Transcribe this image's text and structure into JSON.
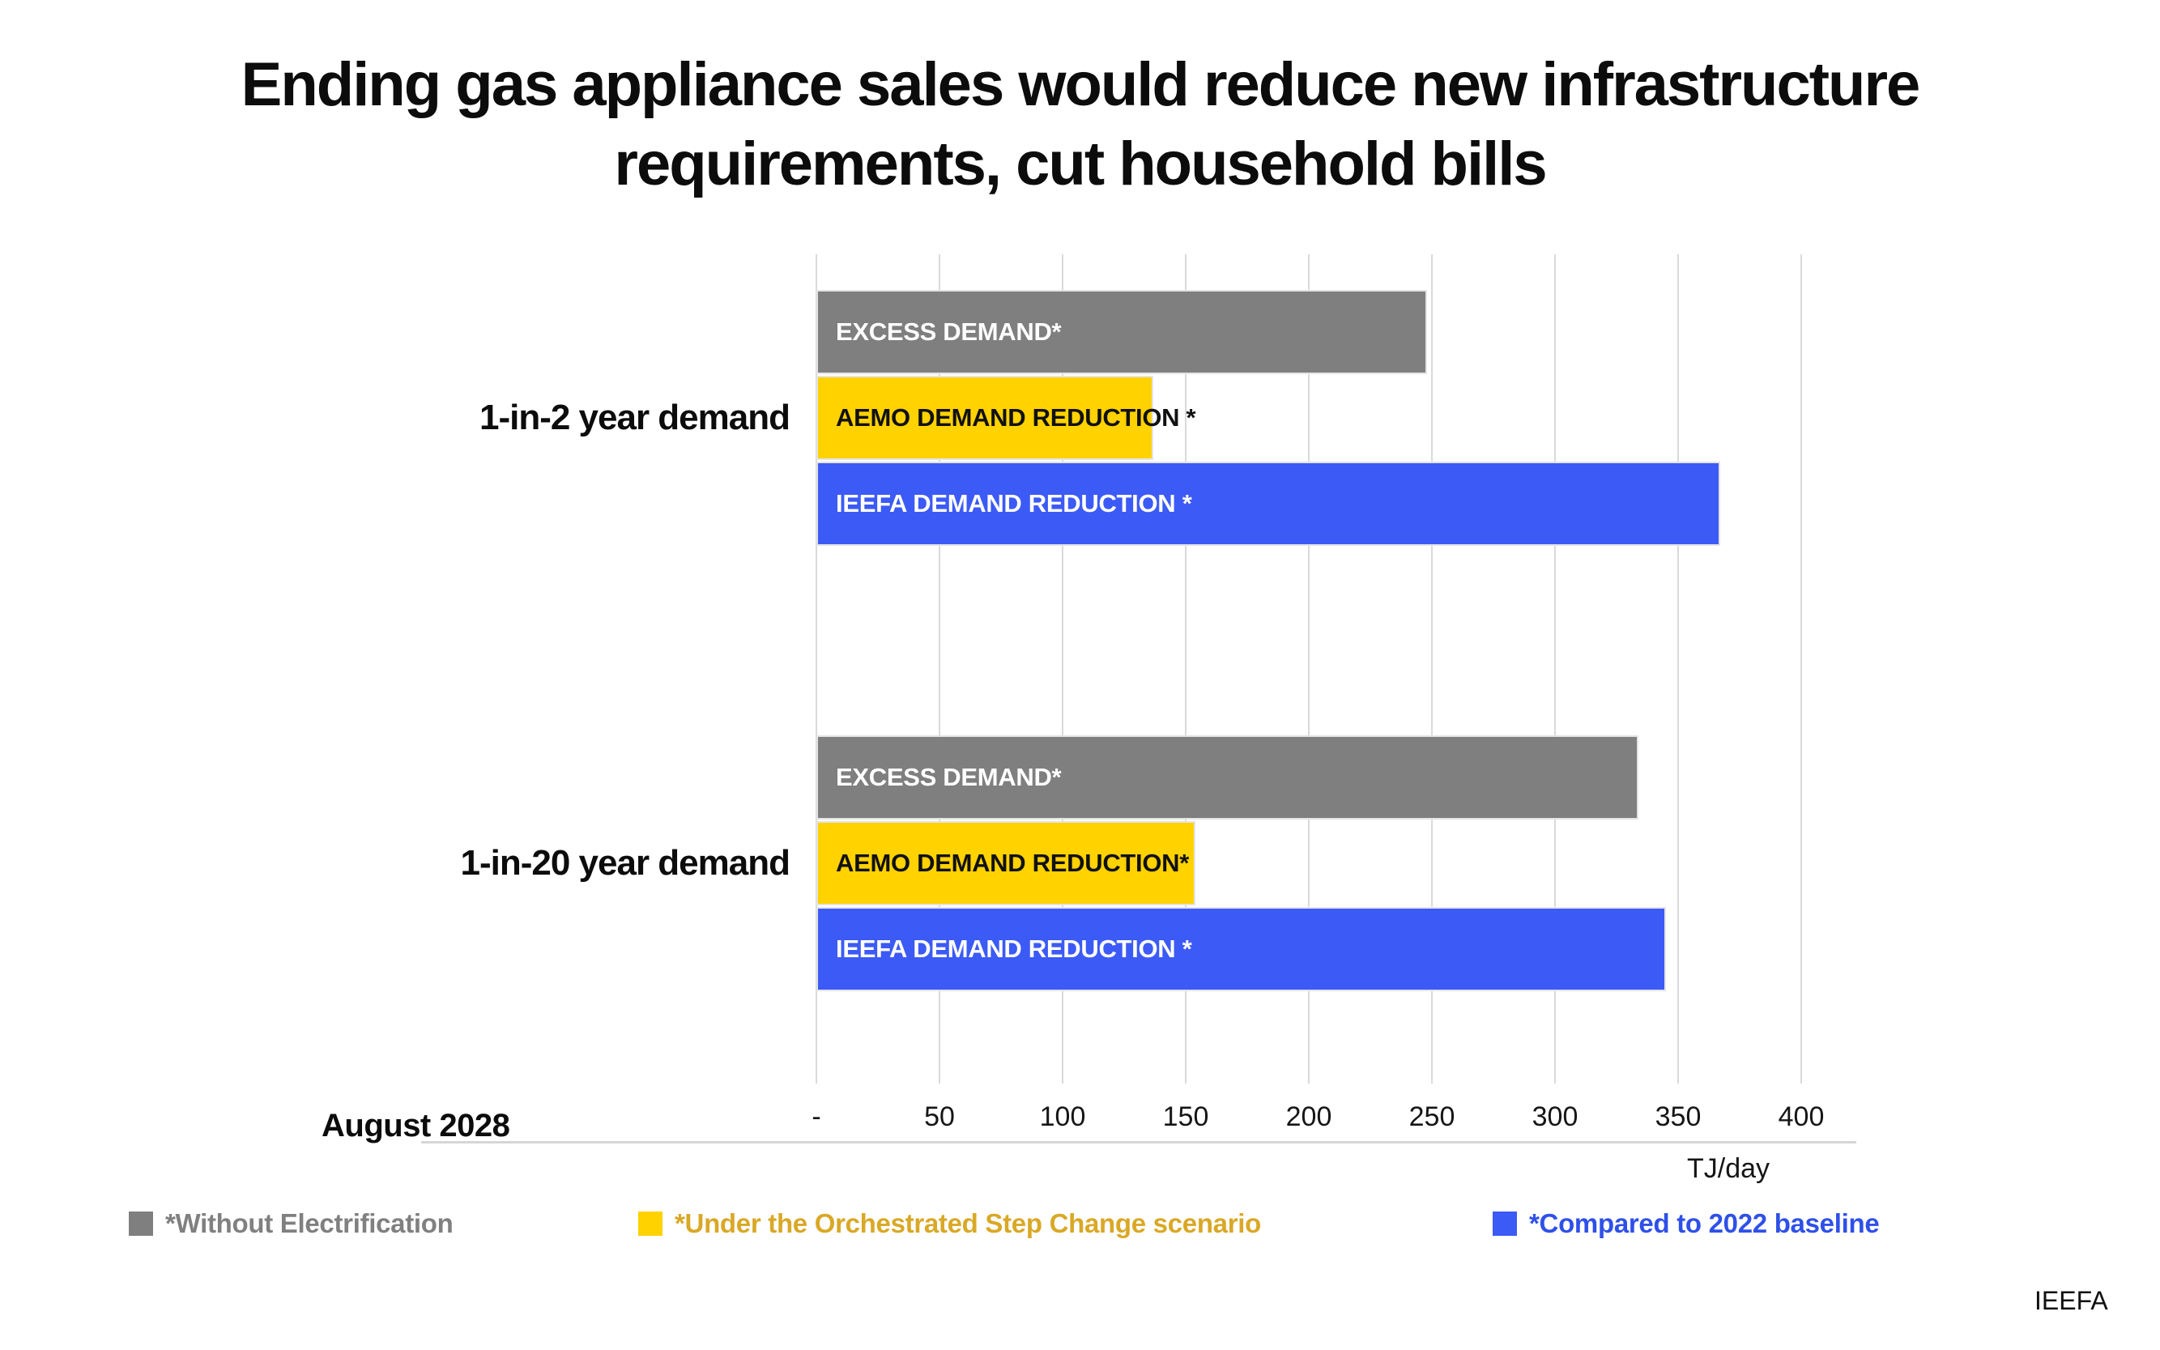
{
  "title": {
    "line1": "Ending gas appliance sales would reduce new infrastructure",
    "line2": "requirements, cut household bills"
  },
  "chart_data": {
    "type": "bar",
    "orientation": "horizontal",
    "title": "Ending gas appliance sales would reduce new infrastructure requirements, cut household bills",
    "xlabel": "TJ/day",
    "xlim": [
      0,
      400
    ],
    "gridline_step": 50,
    "grid": true,
    "x_axis": {
      "ticks": [
        "-",
        "50",
        "100",
        "150",
        "200",
        "250",
        "300",
        "350",
        "400"
      ]
    },
    "series": {
      "without_electrification": {
        "legend": "*Without Electrification",
        "color": "#7F7F7F",
        "label_color": "#FFFFFF"
      },
      "aemo_step_change": {
        "legend": "*Under the Orchestrated Step Change scenario",
        "color": "#FFD200",
        "label_color": "#111111"
      },
      "ieefa_2022_baseline": {
        "legend": "*Compared to 2022 baseline",
        "color": "#3C5AF5",
        "label_color": "#FFFFFF"
      }
    },
    "groups": [
      {
        "label": "1-in-2 year demand",
        "bars": [
          {
            "label": "EXCESS DEMAND*",
            "value": 248,
            "series": "without_electrification"
          },
          {
            "label": "AEMO DEMAND REDUCTION *",
            "value": 137,
            "series": "aemo_step_change"
          },
          {
            "label": "IEEFA DEMAND REDUCTION *",
            "value": 367,
            "series": "ieefa_2022_baseline"
          }
        ]
      },
      {
        "label": "1-in-20 year demand",
        "bars": [
          {
            "label": "EXCESS DEMAND*",
            "value": 334,
            "series": "without_electrification"
          },
          {
            "label": "AEMO DEMAND REDUCTION*",
            "value": 154,
            "series": "aemo_step_change"
          },
          {
            "label": "IEEFA DEMAND REDUCTION *",
            "value": 345,
            "series": "ieefa_2022_baseline"
          }
        ]
      }
    ],
    "unit_label": "TJ/day"
  },
  "axis_note": "August 2028",
  "legend": [
    {
      "label": "*Without Electrification",
      "swatch_color": "#7F7F7F",
      "text_color": "#808080"
    },
    {
      "label": "*Under the Orchestrated Step Change scenario",
      "swatch_color": "#FFD200",
      "text_color": "#D9A826"
    },
    {
      "label": "*Compared to 2022 baseline",
      "swatch_color": "#3C5AF5",
      "text_color": "#2F50E8"
    }
  ],
  "attribution": "IEEFA"
}
